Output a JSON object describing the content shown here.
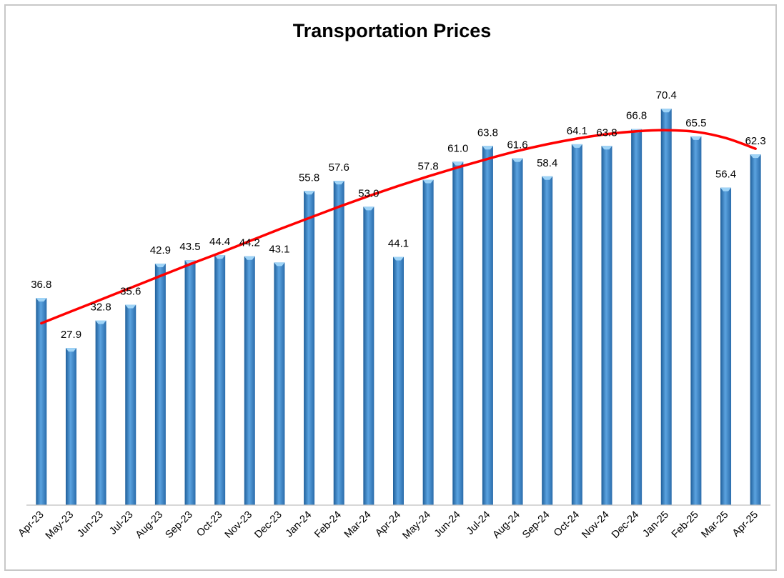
{
  "chart_data": {
    "type": "bar",
    "title": "Transportation Prices",
    "xlabel": "",
    "ylabel": "",
    "ylim": [
      0,
      78
    ],
    "grid": false,
    "legend": "none",
    "categories": [
      "Apr-23",
      "May-23",
      "Jun-23",
      "Jul-23",
      "Aug-23",
      "Sep-23",
      "Oct-23",
      "Nov-23",
      "Dec-23",
      "Jan-24",
      "Feb-24",
      "Mar-24",
      "Apr-24",
      "May-24",
      "Jun-24",
      "Jul-24",
      "Aug-24",
      "Sep-24",
      "Oct-24",
      "Nov-24",
      "Dec-24",
      "Jan-25",
      "Feb-25",
      "Mar-25",
      "Apr-25"
    ],
    "values": [
      36.8,
      27.9,
      32.8,
      35.6,
      42.9,
      43.5,
      44.4,
      44.2,
      43.1,
      55.8,
      57.6,
      53.0,
      44.1,
      57.8,
      61.0,
      63.8,
      61.6,
      58.4,
      64.1,
      63.8,
      66.8,
      70.4,
      65.5,
      56.4,
      62.3
    ],
    "value_labels": [
      "36.8",
      "27.9",
      "32.8",
      "35.6",
      "42.9",
      "43.5",
      "44.4",
      "44.2",
      "43.1",
      "55.8",
      "57.6",
      "53.0",
      "44.1",
      "57.8",
      "61.0",
      "63.8",
      "61.6",
      "58.4",
      "64.1",
      "63.8",
      "66.8",
      "70.4",
      "65.5",
      "56.4",
      "62.3"
    ],
    "trendline": {
      "type": "polynomial",
      "color": "#ff0000",
      "values": [
        32.3,
        34.4,
        36.5,
        38.6,
        40.7,
        42.8,
        44.8,
        46.9,
        49.0,
        51.0,
        53.0,
        54.9,
        56.7,
        58.4,
        60.0,
        61.5,
        62.9,
        64.1,
        65.1,
        65.9,
        66.4,
        66.6,
        66.3,
        65.2,
        63.3
      ]
    },
    "colors": {
      "bar": "#2e75b6",
      "bar_highlight": "#5ba3e0",
      "bar_cap": "#9fd4f7",
      "axis": "#bfbfbf"
    }
  }
}
